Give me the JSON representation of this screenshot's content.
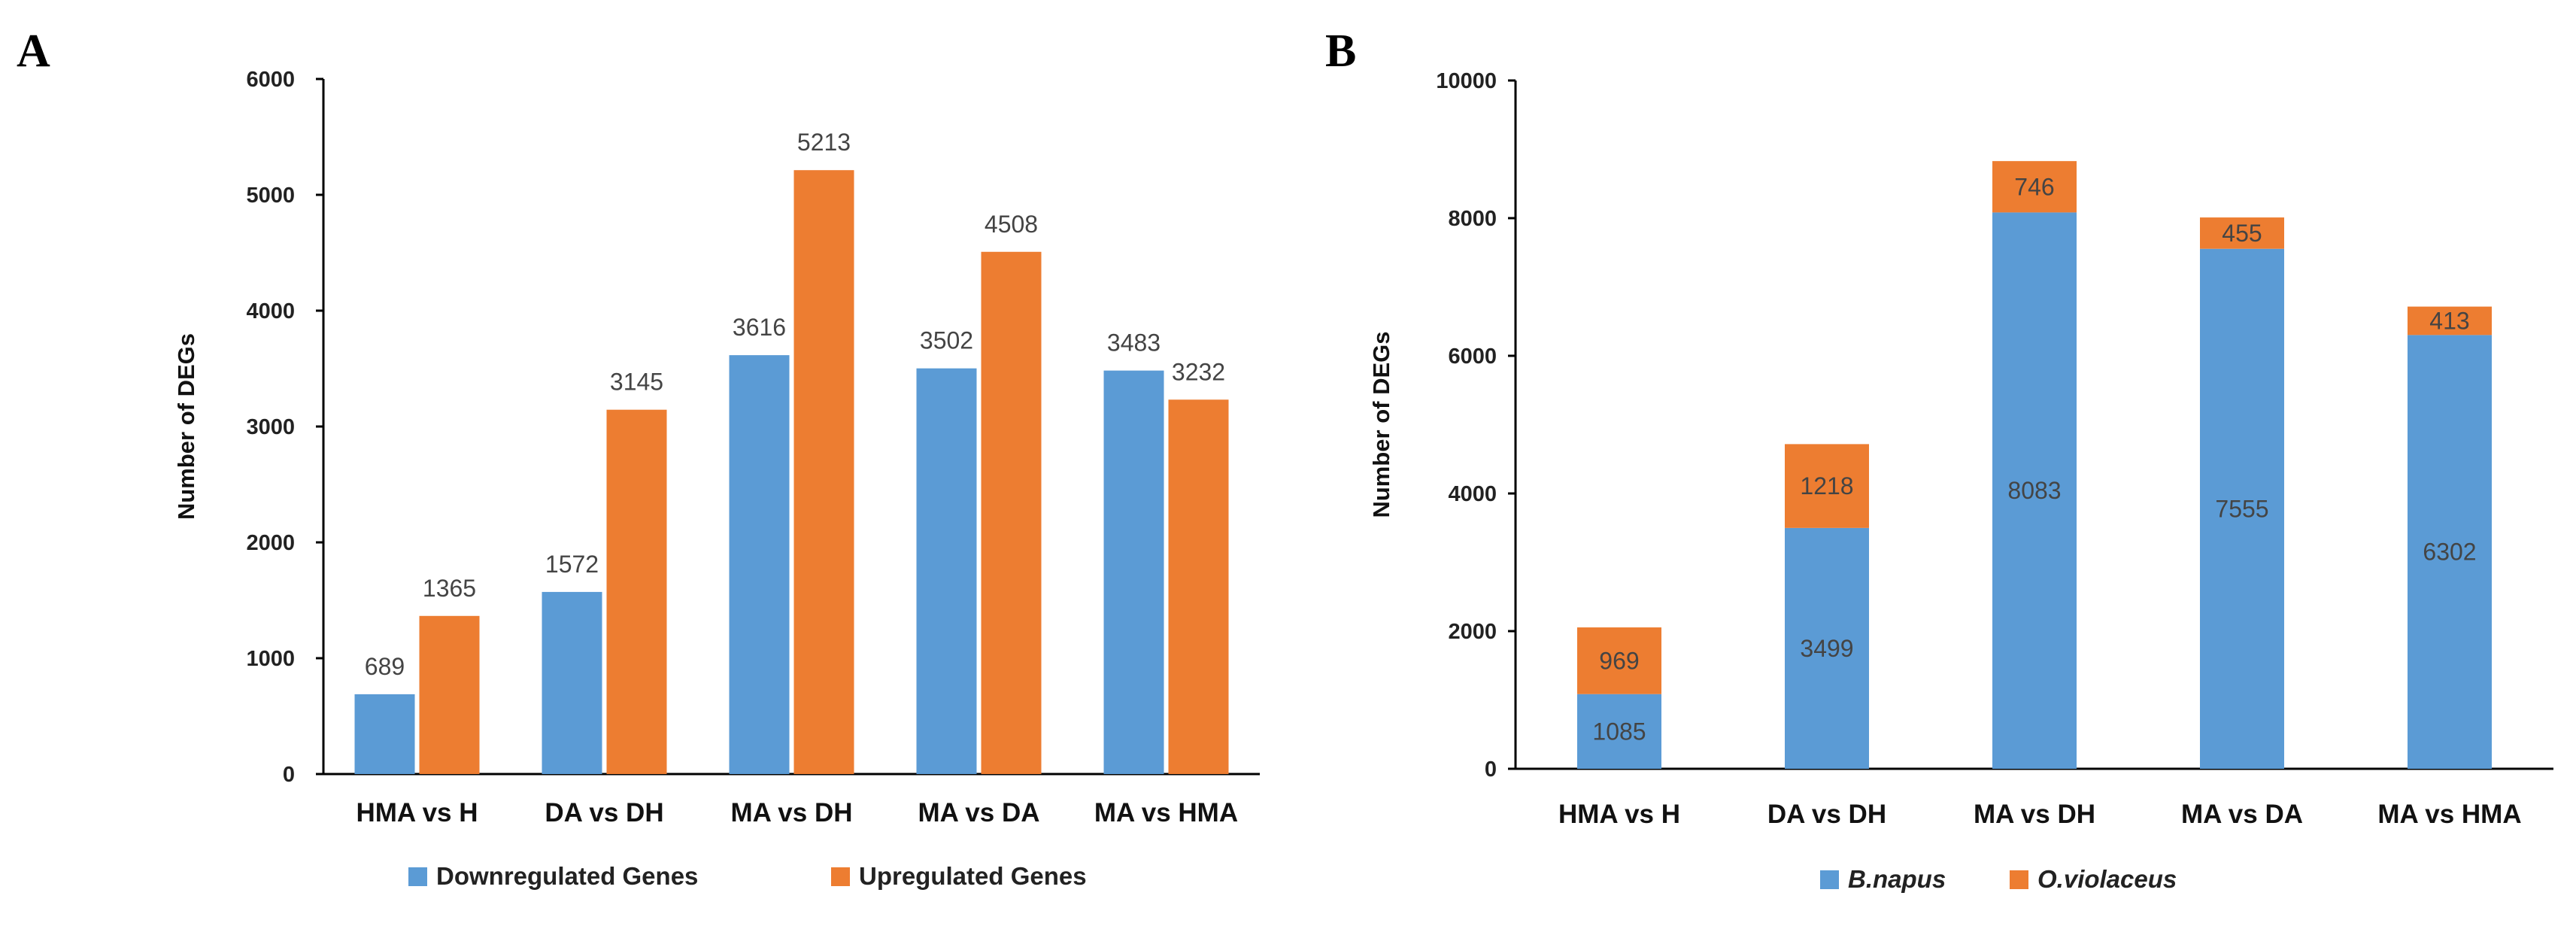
{
  "chart_data": [
    {
      "panel": "A",
      "type": "bar",
      "ylabel": "Number of DEGs",
      "xlabel": "",
      "ylim": [
        0,
        6000
      ],
      "yticks": [
        0,
        1000,
        2000,
        3000,
        4000,
        5000,
        6000
      ],
      "categories": [
        "HMA vs H",
        "DA vs DH",
        "MA vs DH",
        "MA vs DA",
        "MA vs HMA"
      ],
      "series": [
        {
          "name": "Downregulated Genes",
          "color": "#5b9bd5",
          "values": [
            689,
            1572,
            3616,
            3502,
            3483
          ]
        },
        {
          "name": "Upregulated Genes",
          "color": "#ed7d31",
          "values": [
            1365,
            3145,
            5213,
            4508,
            3232
          ]
        }
      ],
      "legend": "bottom"
    },
    {
      "panel": "B",
      "type": "bar",
      "stacked": true,
      "ylabel": "Number of DEGs",
      "xlabel": "",
      "ylim": [
        0,
        10000
      ],
      "yticks": [
        0,
        2000,
        4000,
        6000,
        8000,
        10000
      ],
      "categories": [
        "HMA vs H",
        "DA vs DH",
        "MA vs DH",
        "MA vs DA",
        "MA vs HMA"
      ],
      "series": [
        {
          "name": "B.napus",
          "color": "#5b9bd5",
          "values": [
            1085,
            3499,
            8083,
            7555,
            6302
          ]
        },
        {
          "name": "O.violaceus",
          "color": "#ed7d31",
          "values": [
            969,
            1218,
            746,
            455,
            413
          ]
        }
      ],
      "legend": "bottom"
    }
  ]
}
